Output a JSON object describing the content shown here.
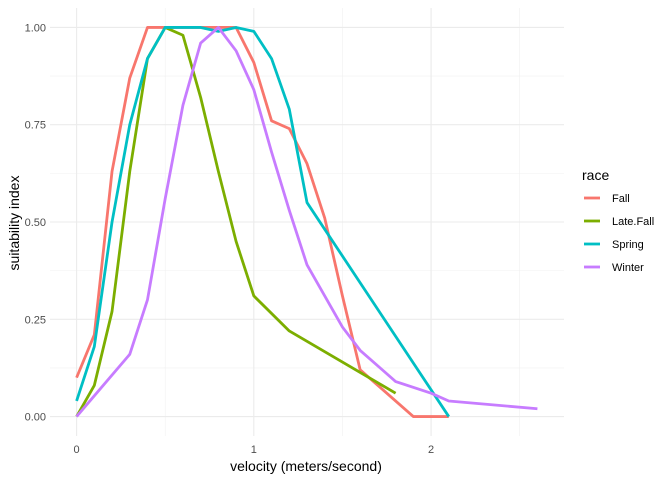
{
  "chart_data": {
    "type": "line",
    "title": "",
    "xlabel": "velocity (meters/second)",
    "ylabel": "suitability index",
    "xlim": [
      -0.15,
      2.75
    ],
    "ylim": [
      -0.05,
      1.05
    ],
    "x_ticks": [
      0,
      1,
      2
    ],
    "x_tick_labels": [
      "0",
      "1",
      "2"
    ],
    "y_ticks": [
      0,
      0.25,
      0.5,
      0.75,
      1
    ],
    "y_tick_labels": [
      "0.00",
      "0.25",
      "0.50",
      "0.75",
      "1.00"
    ],
    "grid": true,
    "legend": {
      "title": "race",
      "position": "right"
    },
    "series": [
      {
        "name": "Fall",
        "color": "#F8766D",
        "points": [
          [
            0,
            0.1
          ],
          [
            0.1,
            0.21
          ],
          [
            0.2,
            0.63
          ],
          [
            0.3,
            0.87
          ],
          [
            0.4,
            1.0
          ],
          [
            0.8,
            1.0
          ],
          [
            0.9,
            1.0
          ],
          [
            1.0,
            0.91
          ],
          [
            1.1,
            0.76
          ],
          [
            1.2,
            0.74
          ],
          [
            1.3,
            0.65
          ],
          [
            1.4,
            0.51
          ],
          [
            1.5,
            0.31
          ],
          [
            1.6,
            0.12
          ],
          [
            1.9,
            0.0
          ],
          [
            2.1,
            0.0
          ]
        ]
      },
      {
        "name": "Late.Fall",
        "color": "#7CAE00",
        "points": [
          [
            0,
            0.0
          ],
          [
            0.1,
            0.08
          ],
          [
            0.2,
            0.27
          ],
          [
            0.3,
            0.63
          ],
          [
            0.4,
            0.92
          ],
          [
            0.5,
            1.0
          ],
          [
            0.6,
            0.98
          ],
          [
            0.7,
            0.82
          ],
          [
            0.8,
            0.63
          ],
          [
            0.9,
            0.45
          ],
          [
            1.0,
            0.31
          ],
          [
            1.2,
            0.22
          ],
          [
            1.8,
            0.06
          ]
        ]
      },
      {
        "name": "Spring",
        "color": "#00BFC4",
        "points": [
          [
            0,
            0.04
          ],
          [
            0.1,
            0.18
          ],
          [
            0.2,
            0.5
          ],
          [
            0.3,
            0.75
          ],
          [
            0.4,
            0.92
          ],
          [
            0.5,
            1.0
          ],
          [
            0.7,
            1.0
          ],
          [
            0.8,
            0.99
          ],
          [
            0.9,
            1.0
          ],
          [
            1.0,
            0.99
          ],
          [
            1.1,
            0.92
          ],
          [
            1.2,
            0.79
          ],
          [
            1.3,
            0.55
          ],
          [
            2.1,
            0.0
          ]
        ]
      },
      {
        "name": "Winter",
        "color": "#C77CFF",
        "points": [
          [
            0,
            0.0
          ],
          [
            0.3,
            0.16
          ],
          [
            0.4,
            0.3
          ],
          [
            0.5,
            0.56
          ],
          [
            0.6,
            0.8
          ],
          [
            0.7,
            0.96
          ],
          [
            0.8,
            1.0
          ],
          [
            0.9,
            0.94
          ],
          [
            1.0,
            0.84
          ],
          [
            1.1,
            0.68
          ],
          [
            1.2,
            0.53
          ],
          [
            1.3,
            0.39
          ],
          [
            1.5,
            0.23
          ],
          [
            1.6,
            0.17
          ],
          [
            1.8,
            0.09
          ],
          [
            2.0,
            0.06
          ],
          [
            2.1,
            0.04
          ],
          [
            2.6,
            0.02
          ]
        ]
      }
    ]
  }
}
